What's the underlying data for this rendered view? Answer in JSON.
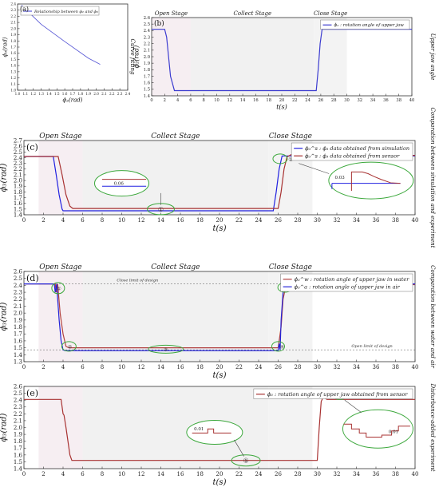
{
  "chart_data": [
    {
      "id": "a",
      "panel_label": "(a)",
      "type": "line",
      "xlabel": "ϕ₂(rad)",
      "ylabel": "ϕ₃(rad)",
      "xlim": [
        1.0,
        2.4
      ],
      "ylim": [
        1.0,
        2.4
      ],
      "xticks": [
        1.0,
        1.1,
        1.2,
        1.3,
        1.4,
        1.5,
        1.6,
        1.7,
        1.8,
        1.9,
        2.0,
        2.1,
        2.2,
        2.3,
        2.4
      ],
      "yticks": [
        1.0,
        1.1,
        1.2,
        1.3,
        1.4,
        1.5,
        1.6,
        1.7,
        1.8,
        1.9,
        2.0,
        2.1,
        2.2,
        2.3,
        2.4
      ],
      "series": [
        {
          "name": "Relationship between ϕ₂ and ϕ₃",
          "color": "#5a5ad6",
          "x": [
            1.05,
            1.3,
            1.6,
            1.9,
            2.05
          ],
          "y": [
            2.38,
            2.07,
            1.79,
            1.52,
            1.42
          ]
        }
      ],
      "legend": "top-left",
      "side_title": ""
    },
    {
      "id": "b",
      "panel_label": "(b)",
      "type": "line",
      "xlabel": "t(s)",
      "ylabel": "ϕ₂(rad)",
      "xlim": [
        0,
        40
      ],
      "ylim": [
        1.4,
        2.6
      ],
      "xticks": [
        0,
        2,
        4,
        6,
        8,
        10,
        12,
        14,
        16,
        18,
        20,
        22,
        24,
        26,
        28,
        30,
        32,
        34,
        36,
        38,
        40
      ],
      "yticks": [
        1.4,
        1.5,
        1.6,
        1.7,
        1.8,
        1.9,
        2.0,
        2.1,
        2.2,
        2.3,
        2.4,
        2.5,
        2.6
      ],
      "stages": [
        {
          "label": "Open Stage",
          "start": 0,
          "end": 6
        },
        {
          "label": "Collect Stage",
          "start": 6,
          "end": 25
        },
        {
          "label": "Close Stage",
          "start": 25,
          "end": 30
        }
      ],
      "series": [
        {
          "name": "ϕ₂ : rotation angle of upper jaw",
          "color": "#3c3cd0",
          "x": [
            0,
            2.0,
            2.3,
            2.6,
            2.9,
            3.5,
            25.3,
            25.6,
            25.9,
            26.2,
            40
          ],
          "y": [
            2.42,
            2.42,
            2.3,
            2.0,
            1.7,
            1.48,
            1.48,
            1.8,
            2.2,
            2.42,
            2.42
          ]
        }
      ],
      "legend": "top-right",
      "side_title": "Upper jaw angle",
      "left_title": "Curve fitting"
    },
    {
      "id": "c",
      "panel_label": "(c)",
      "type": "line",
      "xlabel": "t(s)",
      "ylabel": "ϕ₃(rad)",
      "xlim": [
        0,
        40
      ],
      "ylim": [
        1.4,
        2.7
      ],
      "xticks": [
        0,
        2,
        4,
        6,
        8,
        10,
        12,
        14,
        16,
        18,
        20,
        22,
        24,
        26,
        28,
        30,
        32,
        34,
        36,
        38,
        40
      ],
      "yticks": [
        1.4,
        1.5,
        1.6,
        1.7,
        1.8,
        1.9,
        2.0,
        2.1,
        2.2,
        2.3,
        2.4,
        2.5,
        2.6,
        2.7
      ],
      "stages": [
        {
          "label": "Open Stage",
          "start": 1.5,
          "end": 6
        },
        {
          "label": "Collect Stage",
          "start": 6,
          "end": 25
        },
        {
          "label": "Close Stage",
          "start": 25,
          "end": 29.5
        }
      ],
      "series": [
        {
          "name": "ϕ₃^s : ϕ₃ data obtained from simulation",
          "color": "#2020e0",
          "x": [
            0,
            3.0,
            3.3,
            3.6,
            3.9,
            4.0,
            25.5,
            25.8,
            26.1,
            26.4,
            40
          ],
          "y": [
            2.42,
            2.42,
            2.1,
            1.75,
            1.5,
            1.47,
            1.47,
            1.8,
            2.2,
            2.43,
            2.43
          ]
        },
        {
          "name": "ϕ₃^s : ϕ₃ data obtained from sensor",
          "color": "#a83232",
          "x": [
            0,
            3.5,
            3.9,
            4.3,
            4.7,
            5.0,
            26.0,
            26.3,
            26.6,
            26.9,
            27.3,
            28.2,
            28.6,
            29.0,
            40
          ],
          "y": [
            2.42,
            2.42,
            2.1,
            1.75,
            1.55,
            1.51,
            1.51,
            1.8,
            2.2,
            2.41,
            2.45,
            2.48,
            2.46,
            2.44,
            2.44
          ]
        }
      ],
      "annotations": [
        {
          "text": "0.06"
        },
        {
          "text": "0.03"
        },
        {
          "text": "①"
        },
        {
          "text": "②"
        }
      ],
      "legend": "top-right",
      "side_title": "Comparation between simulation and experiment"
    },
    {
      "id": "d",
      "panel_label": "(d)",
      "type": "line",
      "xlabel": "t(s)",
      "ylabel": "ϕ₃(rad)",
      "xlim": [
        0,
        40
      ],
      "ylim": [
        1.3,
        2.6
      ],
      "xticks": [
        0,
        2,
        4,
        6,
        8,
        10,
        12,
        14,
        16,
        18,
        20,
        22,
        24,
        26,
        28,
        30,
        32,
        34,
        36,
        38,
        40
      ],
      "yticks": [
        1.3,
        1.4,
        1.5,
        1.6,
        1.7,
        1.8,
        1.9,
        2.0,
        2.1,
        2.2,
        2.3,
        2.4,
        2.5,
        2.6
      ],
      "stages": [
        {
          "label": "Open Stage",
          "start": 1.5,
          "end": 6
        },
        {
          "label": "Collect Stage",
          "start": 6,
          "end": 25
        },
        {
          "label": "Close Stage",
          "start": 25,
          "end": 29.5
        }
      ],
      "reference_lines": [
        {
          "label": "Close limit of design",
          "y": 2.42
        },
        {
          "label": "Open limit of design",
          "y": 1.47
        }
      ],
      "series": [
        {
          "name": "ϕ₃^w : rotation angle of upper jaw in water",
          "color": "#b04040",
          "x": [
            0,
            3.2,
            3.3,
            3.45,
            3.55,
            3.7,
            4.0,
            4.3,
            4.6,
            26.0,
            26.3,
            26.5,
            26.8,
            27.2,
            40
          ],
          "y": [
            2.42,
            2.42,
            2.3,
            2.42,
            2.25,
            2.0,
            1.7,
            1.52,
            1.5,
            1.5,
            1.8,
            2.2,
            2.4,
            2.41,
            2.41
          ]
        },
        {
          "name": "ϕ₃^a : rotation angle of upper jaw in air",
          "color": "#2424d8",
          "x": [
            0,
            3.1,
            3.2,
            3.35,
            3.45,
            3.6,
            3.8,
            4.0,
            4.2,
            26.0,
            26.1,
            26.2,
            26.3,
            26.5,
            26.8,
            40
          ],
          "y": [
            2.42,
            2.42,
            2.3,
            2.42,
            2.2,
            1.9,
            1.6,
            1.47,
            1.46,
            1.46,
            1.56,
            1.47,
            1.9,
            2.3,
            2.42,
            2.42
          ]
        }
      ],
      "annotations": [
        {
          "text": "①"
        },
        {
          "text": "②"
        },
        {
          "text": "③"
        },
        {
          "text": "④"
        },
        {
          "text": "⑤"
        }
      ],
      "legend": "top-right",
      "side_title": "Comparation between water and air"
    },
    {
      "id": "e",
      "panel_label": "(e)",
      "type": "line",
      "xlabel": "t(s)",
      "ylabel": "ϕ₃(rad)",
      "xlim": [
        0,
        40
      ],
      "ylim": [
        1.4,
        2.6
      ],
      "xticks": [
        0,
        2,
        4,
        6,
        8,
        10,
        12,
        14,
        16,
        18,
        20,
        22,
        24,
        26,
        28,
        30,
        32,
        34,
        36,
        38,
        40
      ],
      "yticks": [
        1.4,
        1.5,
        1.6,
        1.7,
        1.8,
        1.9,
        2.0,
        2.1,
        2.2,
        2.3,
        2.4,
        2.5,
        2.6
      ],
      "stages": [
        {
          "label": "",
          "start": 1.5,
          "end": 6
        },
        {
          "label": "",
          "start": 6,
          "end": 25
        },
        {
          "label": "",
          "start": 25,
          "end": 29.5
        }
      ],
      "series": [
        {
          "name": "ϕ₃ : rotation angle of upper jaw obtained from sensor",
          "color": "#a83232",
          "x": [
            0,
            3.8,
            4.0,
            4.1,
            4.3,
            4.5,
            4.7,
            4.9,
            5.0,
            30.0,
            30.2,
            30.4,
            30.6,
            31.0,
            40
          ],
          "y": [
            2.41,
            2.41,
            2.2,
            2.18,
            2.0,
            1.8,
            1.6,
            1.52,
            1.52,
            1.52,
            2.0,
            2.38,
            2.44,
            2.41,
            2.41
          ]
        }
      ],
      "annotations": [
        {
          "text": "0.01"
        },
        {
          "text": "0.01"
        },
        {
          "text": "①"
        },
        {
          "text": "②"
        }
      ],
      "legend": "top-right",
      "side_title": "Disturbance-added experiment"
    }
  ]
}
